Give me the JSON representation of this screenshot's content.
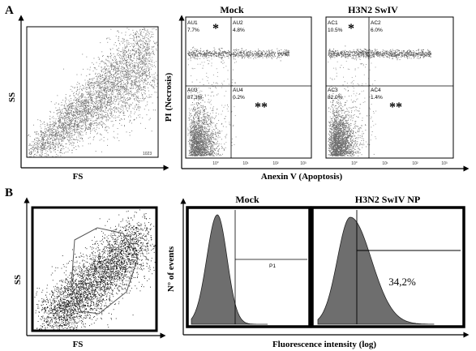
{
  "panel_a": {
    "letter": "A",
    "scatter": {
      "y_label": "SS",
      "x_label": "FS",
      "x_tick_min": "0",
      "x_tick_max": "1023"
    },
    "apoptosis": {
      "y_label": "PI (Necrosis)",
      "x_label": "Anexin V (Apoptosis)",
      "plots": [
        {
          "title": "Mock",
          "quadrants": [
            {
              "name": "AU1",
              "value": "7.7%"
            },
            {
              "name": "AU2",
              "value": "4.8%"
            },
            {
              "name": "AU3",
              "value": "87.3%"
            },
            {
              "name": "AU4",
              "value": "0.2%"
            }
          ],
          "tick_labels": [
            "10°",
            "10¹",
            "10²",
            "10³"
          ]
        },
        {
          "title": "H3N2 SwIV",
          "quadrants": [
            {
              "name": "AC1",
              "value": "10.5%"
            },
            {
              "name": "AC2",
              "value": "6.0%"
            },
            {
              "name": "AC3",
              "value": "82.0%"
            },
            {
              "name": "AC4",
              "value": "1.4%"
            }
          ],
          "tick_labels": [
            "10°",
            "10¹",
            "10²",
            "10³"
          ]
        }
      ],
      "single_star": "*",
      "double_star": "**"
    }
  },
  "panel_b": {
    "letter": "B",
    "scatter": {
      "y_label": "SS",
      "x_label": "FS"
    },
    "histograms": {
      "y_label": "N° of events",
      "x_label": "Fluorescence intensity (log)",
      "plots": [
        {
          "title": "Mock",
          "gate_label": "P1"
        },
        {
          "title": "H3N2 SwIV NP",
          "gate_value": "34,2%"
        }
      ]
    }
  }
}
